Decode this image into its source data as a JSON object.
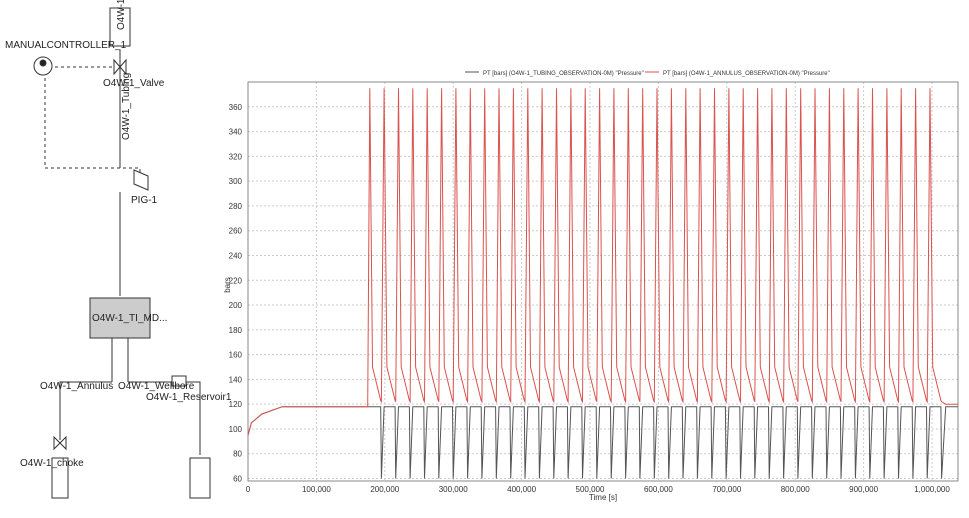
{
  "diagram": {
    "nodes": [
      "MANUALCONTROLLER_1",
      "O4W-1_",
      "O4W-1_Valve",
      "O4W-1_Tubing",
      "PIG-1",
      "O4W-1_TI_MD...",
      "O4W-1_Annulus",
      "O4W-1_Wellbore",
      "O4W-1_Reservoir1",
      "O4W-1_choke"
    ]
  },
  "chart_data": {
    "type": "line",
    "y_label": "bars",
    "x_label": "Time [s]",
    "xlim": [
      0,
      1038000
    ],
    "ylim": [
      58,
      380
    ],
    "grid": true,
    "xticks": [
      0,
      {
        "value": 100000,
        "label": "100,000"
      },
      {
        "value": 200000,
        "label": "200,000"
      },
      {
        "value": 300000,
        "label": "300,000"
      },
      {
        "value": 400000,
        "label": "400,000"
      },
      {
        "value": 500000,
        "label": "500,000"
      },
      {
        "value": 600000,
        "label": "600,000"
      },
      {
        "value": 700000,
        "label": "700,000"
      },
      {
        "value": 800000,
        "label": "800,000"
      },
      {
        "value": 900000,
        "label": "900,000"
      },
      {
        "value": 1000000,
        "label": "1,000,000"
      }
    ],
    "yticks": [
      60,
      80,
      100,
      120,
      140,
      160,
      180,
      200,
      220,
      240,
      260,
      280,
      300,
      320,
      340,
      360
    ],
    "x": [
      0,
      5000,
      20000,
      50000,
      100000,
      175000,
      178000,
      182000,
      194000,
      195000,
      199000,
      203000,
      215000,
      216000,
      220000,
      224000,
      236000,
      237000,
      241000,
      245000,
      257000,
      258000,
      262000,
      266000,
      278000,
      279000,
      283000,
      287000,
      299000,
      300000,
      304000,
      308000,
      320000,
      321000,
      325000,
      329000,
      341000,
      342000,
      346000,
      350000,
      362000,
      363000,
      367000,
      371000,
      383000,
      384000,
      388000,
      392000,
      404000,
      405000,
      409000,
      413000,
      425000,
      426000,
      430000,
      434000,
      446000,
      447000,
      451000,
      455000,
      467000,
      468000,
      472000,
      476000,
      488000,
      489000,
      493000,
      497000,
      509000,
      510000,
      514000,
      518000,
      530000,
      531000,
      535000,
      539000,
      551000,
      552000,
      556000,
      560000,
      572000,
      573000,
      577000,
      581000,
      593000,
      594000,
      598000,
      602000,
      614000,
      615000,
      619000,
      623000,
      635000,
      636000,
      640000,
      644000,
      656000,
      657000,
      661000,
      665000,
      677000,
      678000,
      682000,
      686000,
      698000,
      699000,
      703000,
      707000,
      719000,
      720000,
      724000,
      728000,
      740000,
      741000,
      745000,
      749000,
      761000,
      762000,
      766000,
      770000,
      782000,
      783000,
      787000,
      791000,
      803000,
      804000,
      808000,
      812000,
      824000,
      825000,
      829000,
      833000,
      845000,
      846000,
      850000,
      854000,
      866000,
      867000,
      871000,
      875000,
      887000,
      888000,
      892000,
      896000,
      908000,
      909000,
      913000,
      917000,
      929000,
      930000,
      934000,
      938000,
      950000,
      951000,
      955000,
      959000,
      971000,
      972000,
      976000,
      980000,
      992000,
      993000,
      997000,
      1001000,
      1013000,
      1014000,
      1020000,
      1038000
    ],
    "series": [
      {
        "name": "PT [bars] (O4W-1_TUBING_OBSERVATION-0M) \"Pressure\"",
        "color": "#555555",
        "values": [
          95,
          105,
          112,
          118,
          118,
          118,
          118,
          118,
          118,
          60,
          118,
          118,
          118,
          60,
          118,
          118,
          118,
          60,
          118,
          118,
          118,
          60,
          118,
          118,
          118,
          60,
          118,
          118,
          118,
          60,
          118,
          118,
          118,
          60,
          118,
          118,
          118,
          60,
          118,
          118,
          118,
          60,
          118,
          118,
          118,
          60,
          118,
          118,
          118,
          60,
          118,
          118,
          118,
          60,
          118,
          118,
          118,
          60,
          118,
          118,
          118,
          60,
          118,
          118,
          118,
          60,
          118,
          118,
          118,
          60,
          118,
          118,
          118,
          60,
          118,
          118,
          118,
          60,
          118,
          118,
          118,
          60,
          118,
          118,
          118,
          60,
          118,
          118,
          118,
          60,
          118,
          118,
          118,
          60,
          118,
          118,
          118,
          60,
          118,
          118,
          118,
          60,
          118,
          118,
          118,
          60,
          118,
          118,
          118,
          60,
          118,
          118,
          118,
          60,
          118,
          118,
          118,
          60,
          118,
          118,
          118,
          60,
          118,
          118,
          118,
          60,
          118,
          118,
          118,
          60,
          118,
          118,
          118,
          60,
          118,
          118,
          118,
          60,
          118,
          118,
          118,
          60,
          118,
          118,
          118,
          60,
          118,
          118,
          118,
          60,
          118,
          118,
          118,
          60,
          118,
          118,
          118,
          60,
          118,
          118,
          118,
          60,
          118,
          118,
          118,
          60,
          118,
          118
        ]
      },
      {
        "name": "PT [bars] (O4W-1_ANNULUS_OBSERVATION-0M) \"Pressure\"",
        "color": "#d9534f",
        "values": [
          95,
          105,
          112,
          118,
          118,
          118,
          375,
          150,
          123,
          122,
          375,
          150,
          123,
          122,
          375,
          150,
          123,
          122,
          375,
          150,
          123,
          122,
          375,
          150,
          123,
          122,
          375,
          150,
          123,
          122,
          375,
          150,
          123,
          122,
          375,
          150,
          123,
          122,
          375,
          150,
          123,
          122,
          375,
          150,
          123,
          122,
          375,
          150,
          123,
          122,
          375,
          150,
          123,
          122,
          375,
          150,
          123,
          122,
          375,
          150,
          123,
          122,
          375,
          150,
          123,
          122,
          375,
          150,
          123,
          122,
          375,
          150,
          123,
          122,
          375,
          150,
          123,
          122,
          375,
          150,
          123,
          122,
          375,
          150,
          123,
          122,
          375,
          150,
          123,
          122,
          375,
          150,
          123,
          122,
          375,
          150,
          123,
          122,
          375,
          150,
          123,
          122,
          375,
          150,
          123,
          122,
          375,
          150,
          123,
          122,
          375,
          150,
          123,
          122,
          375,
          150,
          123,
          122,
          375,
          150,
          123,
          122,
          375,
          150,
          123,
          122,
          375,
          150,
          123,
          122,
          375,
          150,
          123,
          122,
          375,
          150,
          123,
          122,
          375,
          150,
          123,
          122,
          375,
          150,
          123,
          122,
          375,
          150,
          123,
          122,
          375,
          150,
          123,
          122,
          375,
          150,
          123,
          122,
          375,
          150,
          123,
          122,
          375,
          150,
          123,
          122,
          120,
          120
        ]
      }
    ]
  }
}
